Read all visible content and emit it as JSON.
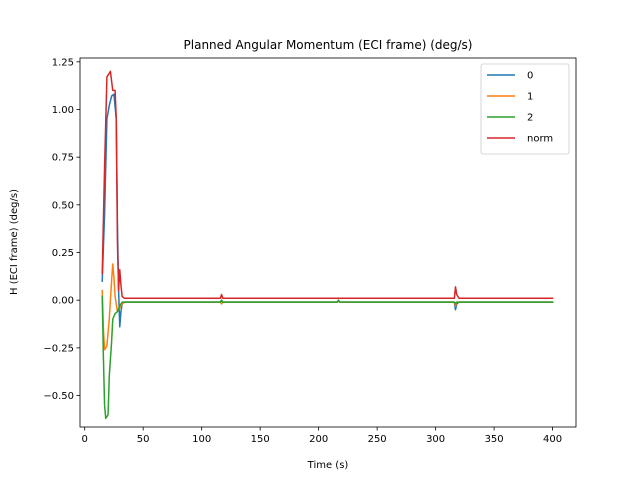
{
  "chart_data": {
    "type": "line",
    "title": "Planned Angular Momentum (ECI frame) (deg/s)",
    "xlabel": "Time (s)",
    "ylabel": "H (ECI frame) (deg/s)",
    "xlim": [
      -4,
      420
    ],
    "ylim": [
      -0.665,
      1.27
    ],
    "xticks": [
      0,
      50,
      100,
      150,
      200,
      250,
      300,
      350,
      400
    ],
    "xtick_labels": [
      "0",
      "50",
      "100",
      "150",
      "200",
      "250",
      "300",
      "350",
      "400"
    ],
    "yticks": [
      -0.5,
      -0.25,
      0.0,
      0.25,
      0.5,
      0.75,
      1.0,
      1.25
    ],
    "ytick_labels": [
      "−0.50",
      "−0.25",
      "0.00",
      "0.25",
      "0.50",
      "0.75",
      "1.00",
      "1.25"
    ],
    "grid": false,
    "legend_position": "top-right",
    "series": [
      {
        "name": "0",
        "color": "#1f77b4",
        "points": [
          [
            15,
            0.1
          ],
          [
            17,
            0.45
          ],
          [
            19,
            0.95
          ],
          [
            21,
            1.02
          ],
          [
            23,
            1.07
          ],
          [
            25,
            1.08
          ],
          [
            27,
            0.95
          ],
          [
            28,
            0.4
          ],
          [
            29,
            0.05
          ],
          [
            30,
            -0.14
          ],
          [
            31,
            -0.06
          ],
          [
            32,
            -0.02
          ],
          [
            34,
            -0.01
          ],
          [
            116,
            -0.01
          ],
          [
            117,
            0.0
          ],
          [
            118,
            -0.01
          ],
          [
            216,
            -0.01
          ],
          [
            217,
            0.0
          ],
          [
            218,
            -0.01
          ],
          [
            316,
            -0.01
          ],
          [
            317,
            -0.05
          ],
          [
            318,
            -0.02
          ],
          [
            320,
            -0.01
          ],
          [
            400,
            -0.01
          ]
        ]
      },
      {
        "name": "1",
        "color": "#ff7f0e",
        "points": [
          [
            15,
            0.05
          ],
          [
            16,
            -0.15
          ],
          [
            17,
            -0.26
          ],
          [
            19,
            -0.24
          ],
          [
            21,
            -0.1
          ],
          [
            23,
            0.1
          ],
          [
            24,
            0.19
          ],
          [
            25,
            0.12
          ],
          [
            26,
            0.02
          ],
          [
            28,
            -0.06
          ],
          [
            30,
            -0.04
          ],
          [
            32,
            -0.02
          ],
          [
            34,
            -0.01
          ],
          [
            116,
            -0.01
          ],
          [
            117,
            -0.02
          ],
          [
            118,
            -0.01
          ],
          [
            216,
            -0.01
          ],
          [
            217,
            0.0
          ],
          [
            218,
            -0.01
          ],
          [
            316,
            -0.01
          ],
          [
            317,
            -0.03
          ],
          [
            318,
            -0.01
          ],
          [
            320,
            -0.01
          ],
          [
            400,
            -0.01
          ]
        ]
      },
      {
        "name": "2",
        "color": "#2ca02c",
        "points": [
          [
            15,
            0.02
          ],
          [
            16,
            -0.3
          ],
          [
            17,
            -0.55
          ],
          [
            18,
            -0.62
          ],
          [
            20,
            -0.6
          ],
          [
            21,
            -0.4
          ],
          [
            23,
            -0.22
          ],
          [
            24,
            -0.1
          ],
          [
            26,
            -0.07
          ],
          [
            28,
            -0.06
          ],
          [
            30,
            -0.03
          ],
          [
            32,
            -0.01
          ],
          [
            34,
            -0.01
          ],
          [
            116,
            -0.01
          ],
          [
            117,
            0.0
          ],
          [
            118,
            -0.01
          ],
          [
            216,
            -0.01
          ],
          [
            217,
            0.0
          ],
          [
            218,
            -0.01
          ],
          [
            316,
            -0.01
          ],
          [
            317,
            -0.02
          ],
          [
            318,
            -0.01
          ],
          [
            320,
            -0.01
          ],
          [
            400,
            -0.01
          ]
        ]
      },
      {
        "name": "norm",
        "color": "#d62728",
        "points": [
          [
            15,
            0.14
          ],
          [
            17,
            0.7
          ],
          [
            19,
            1.17
          ],
          [
            21,
            1.19
          ],
          [
            22,
            1.2
          ],
          [
            23,
            1.15
          ],
          [
            24,
            1.1
          ],
          [
            26,
            1.1
          ],
          [
            27,
            0.95
          ],
          [
            28,
            0.3
          ],
          [
            29,
            0.05
          ],
          [
            30,
            0.16
          ],
          [
            31,
            0.08
          ],
          [
            32,
            0.02
          ],
          [
            34,
            0.01
          ],
          [
            116,
            0.01
          ],
          [
            117,
            0.03
          ],
          [
            118,
            0.01
          ],
          [
            216,
            0.01
          ],
          [
            217,
            0.01
          ],
          [
            218,
            0.01
          ],
          [
            316,
            0.01
          ],
          [
            317,
            0.07
          ],
          [
            318,
            0.03
          ],
          [
            320,
            0.01
          ],
          [
            400,
            0.01
          ]
        ]
      }
    ]
  }
}
